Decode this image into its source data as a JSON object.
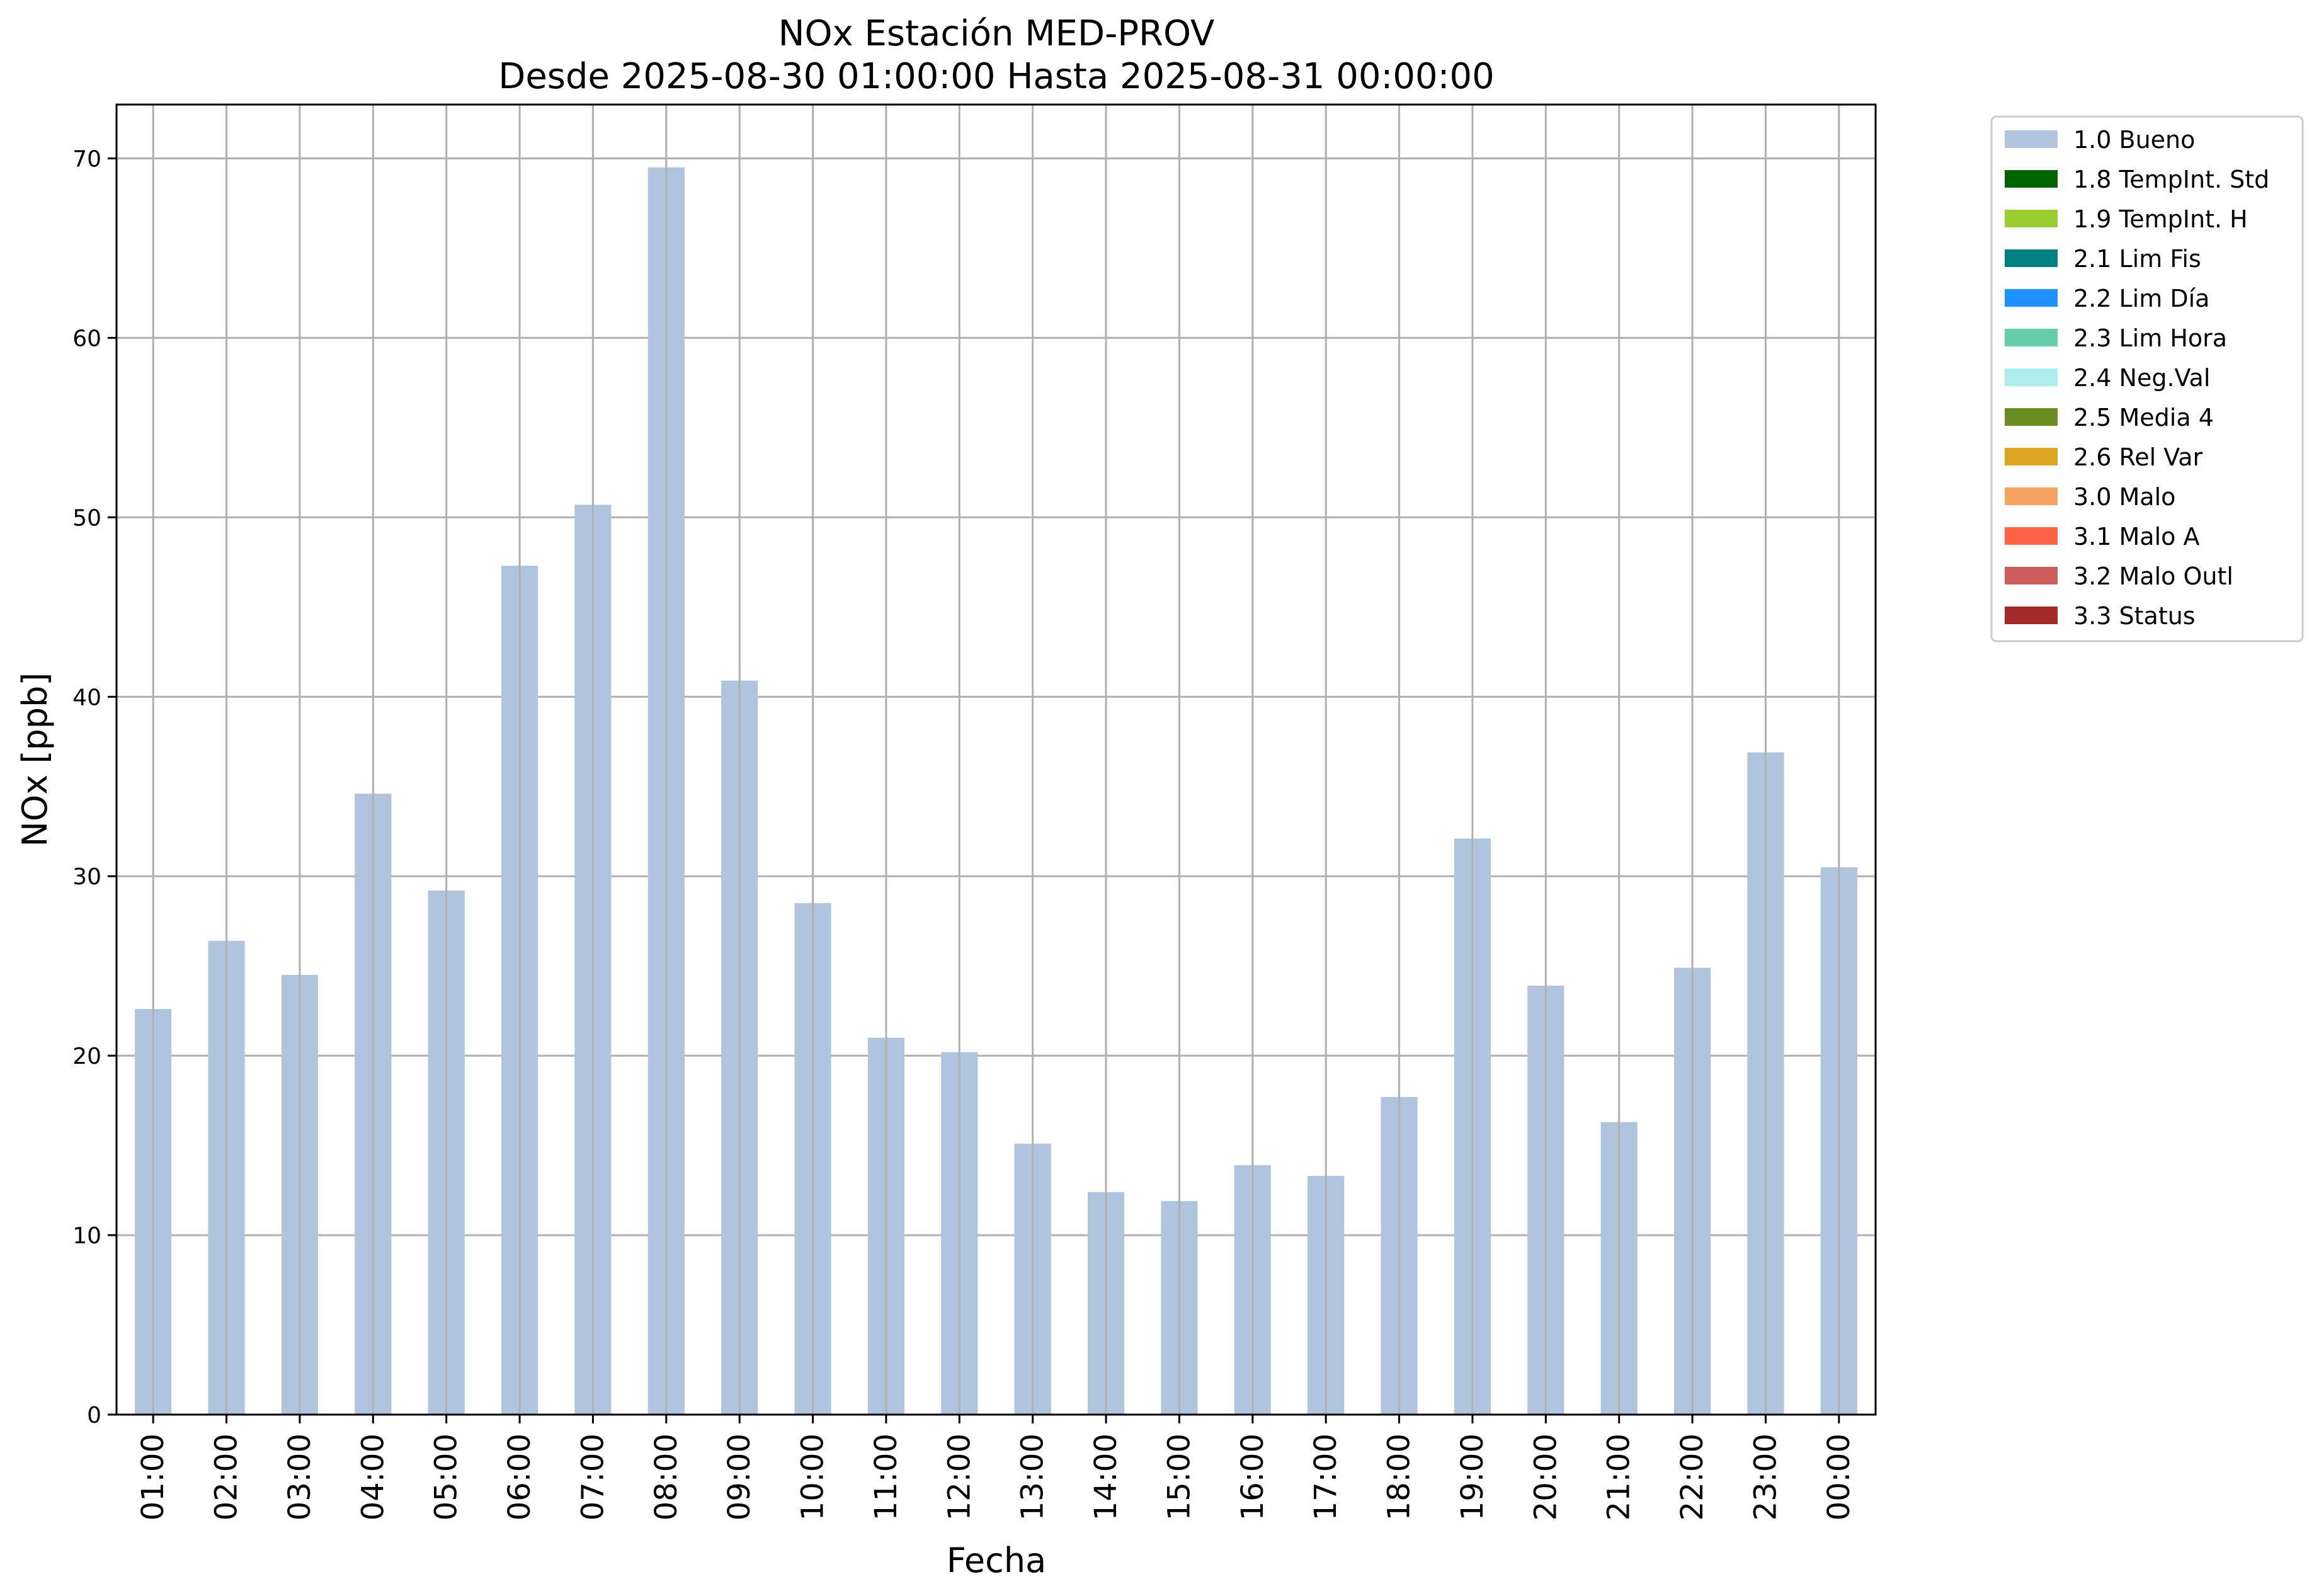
{
  "chart_data": {
    "type": "bar",
    "title": "NOx Estación MED-PROV",
    "subtitle": "Desde 2025-08-30 01:00:00 Hasta 2025-08-31 00:00:00",
    "xlabel": "Fecha",
    "ylabel": "NOx [ppb]",
    "ylim": [
      0,
      73
    ],
    "yticks": [
      0,
      10,
      20,
      30,
      40,
      50,
      60,
      70
    ],
    "grid": true,
    "legend_position": "outside-top-right",
    "categories": [
      "01:00",
      "02:00",
      "03:00",
      "04:00",
      "05:00",
      "06:00",
      "07:00",
      "08:00",
      "09:00",
      "10:00",
      "11:00",
      "12:00",
      "13:00",
      "14:00",
      "15:00",
      "16:00",
      "17:00",
      "18:00",
      "19:00",
      "20:00",
      "21:00",
      "22:00",
      "23:00",
      "00:00"
    ],
    "series": [
      {
        "name": "1.0 Bueno",
        "color": "#b0c4de",
        "values": [
          22.6,
          26.4,
          24.5,
          34.6,
          29.2,
          47.3,
          50.7,
          69.5,
          40.9,
          28.5,
          21.0,
          20.2,
          15.1,
          12.4,
          11.9,
          13.9,
          13.3,
          17.7,
          32.1,
          23.9,
          16.3,
          24.9,
          36.9,
          30.5
        ]
      }
    ],
    "legend": [
      {
        "label": "1.0 Bueno",
        "color": "#b0c4de"
      },
      {
        "label": "1.8 TempInt. Std",
        "color": "#006400"
      },
      {
        "label": "1.9 TempInt. H",
        "color": "#9acd32"
      },
      {
        "label": "2.1 Lim Fis",
        "color": "#008080"
      },
      {
        "label": "2.2 Lim Día",
        "color": "#1e90ff"
      },
      {
        "label": "2.3 Lim Hora",
        "color": "#66cdaa"
      },
      {
        "label": "2.4 Neg.Val",
        "color": "#afeeee"
      },
      {
        "label": "2.5 Media 4",
        "color": "#6b8e23"
      },
      {
        "label": "2.6 Rel Var",
        "color": "#daa520"
      },
      {
        "label": "3.0 Malo",
        "color": "#f4a460"
      },
      {
        "label": "3.1 Malo A",
        "color": "#ff6347"
      },
      {
        "label": "3.2 Malo Outl",
        "color": "#cd5c5c"
      },
      {
        "label": "3.3 Status",
        "color": "#a52a2a"
      }
    ]
  }
}
